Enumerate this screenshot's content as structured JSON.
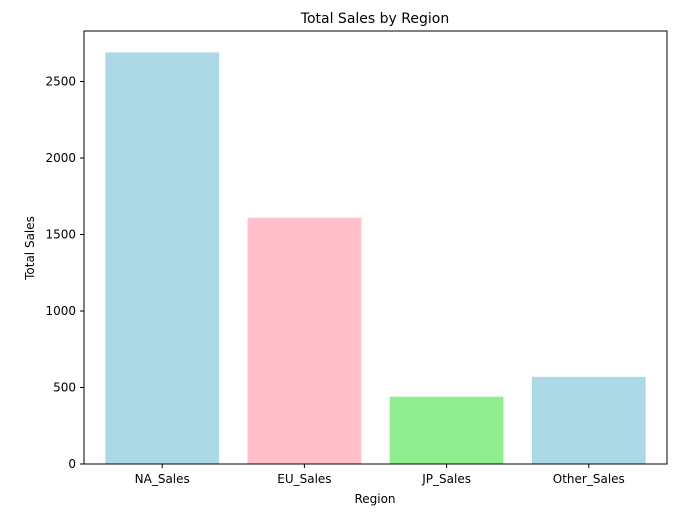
{
  "chart_data": {
    "type": "bar",
    "title": "Total Sales by Region",
    "xlabel": "Region",
    "ylabel": "Total Sales",
    "categories": [
      "NA_Sales",
      "EU_Sales",
      "JP_Sales",
      "Other_Sales"
    ],
    "values": [
      2690,
      1610,
      440,
      570
    ],
    "colors": [
      "#add8e6",
      "#ffc0cb",
      "#90ee90",
      "#add8e6"
    ],
    "ylim": [
      0,
      2830
    ],
    "yticks": [
      0,
      500,
      1000,
      1500,
      2000,
      2500
    ],
    "grid": false,
    "legend": "none"
  }
}
